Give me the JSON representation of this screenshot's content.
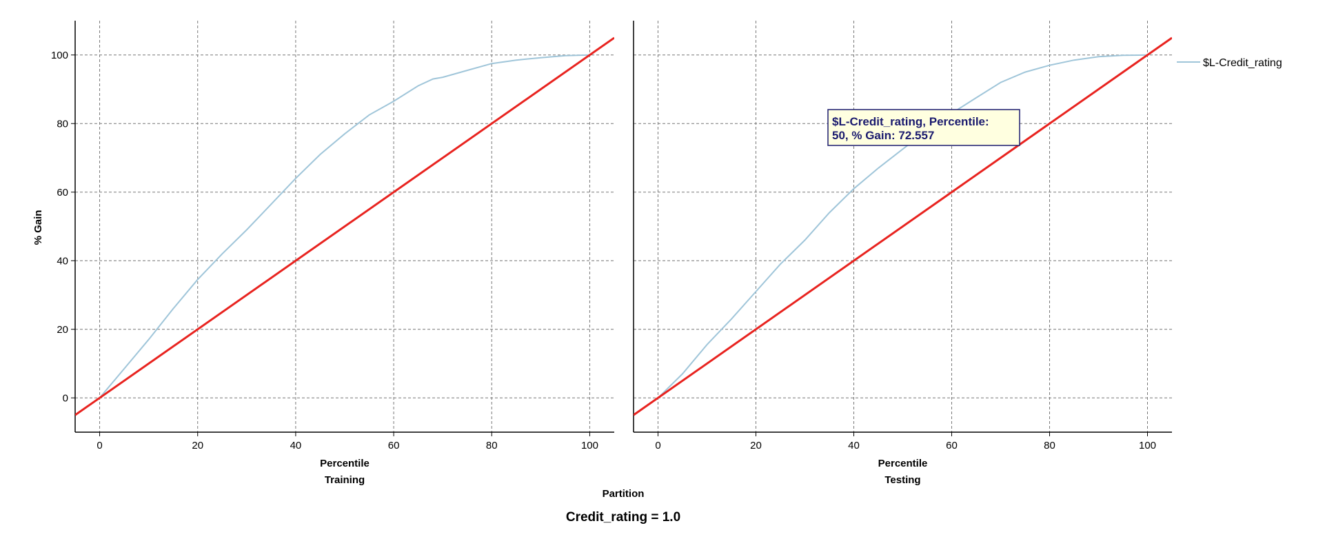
{
  "chart_data": {
    "type": "line",
    "y_axis_label": "% Gain",
    "x_axis_label": "Percentile",
    "group_axis_label": "Partition",
    "footer": "Credit_rating = 1.0",
    "ylim": [
      -10,
      110
    ],
    "xlim": [
      -5,
      105
    ],
    "y_ticks": [
      0,
      20,
      40,
      60,
      80,
      100
    ],
    "x_ticks": [
      0,
      20,
      40,
      60,
      80,
      100
    ],
    "grid": true,
    "legend": {
      "placement": "right",
      "label": "$L-Credit_rating",
      "color": "#9fc5d9"
    },
    "reference_line_color": "#e8231f",
    "panels": [
      {
        "name": "Training",
        "series": [
          {
            "name": "$L-Credit_rating",
            "x": [
              0,
              5,
              10,
              15,
              20,
              25,
              30,
              35,
              40,
              45,
              50,
              55,
              60,
              65,
              68,
              70,
              75,
              80,
              85,
              90,
              95,
              100
            ],
            "y": [
              0,
              8.5,
              17,
              26,
              34.5,
              42,
              49,
              56.5,
              64,
              71,
              77,
              82.5,
              86.5,
              91,
              93,
              93.5,
              95.5,
              97.5,
              98.5,
              99.2,
              99.8,
              100
            ]
          }
        ],
        "baseline": {
          "x": [
            -5,
            105
          ],
          "y": [
            -5,
            105
          ]
        }
      },
      {
        "name": "Testing",
        "series": [
          {
            "name": "$L-Credit_rating",
            "x": [
              0,
              5,
              10,
              15,
              20,
              25,
              30,
              35,
              40,
              45,
              50,
              55,
              60,
              65,
              70,
              75,
              80,
              85,
              90,
              95,
              100
            ],
            "y": [
              0,
              7,
              15.5,
              23,
              31,
              39,
              46,
              54,
              61,
              67,
              72.557,
              78,
              83,
              87.5,
              92,
              95,
              97,
              98.5,
              99.5,
              99.9,
              100
            ]
          }
        ],
        "baseline": {
          "x": [
            -5,
            105
          ],
          "y": [
            -5,
            105
          ]
        }
      }
    ],
    "tooltip": {
      "panel": "Testing",
      "line1": "$L-Credit_rating, Percentile:",
      "line2": "50, % Gain: 72.557",
      "x": 50,
      "y": 72.557
    }
  }
}
